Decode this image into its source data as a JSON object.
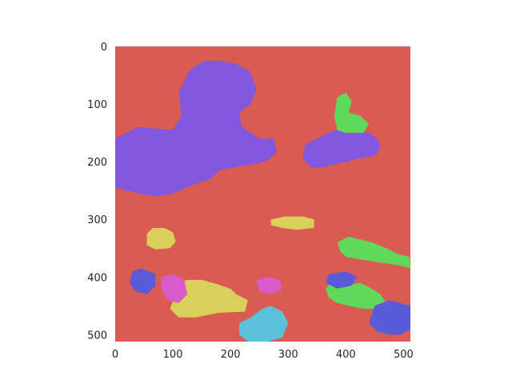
{
  "chart_data": {
    "type": "heatmap",
    "title": "",
    "xlabel": "",
    "ylabel": "",
    "image_size": [
      512,
      512
    ],
    "xlim": [
      0,
      512
    ],
    "ylim": [
      512,
      0
    ],
    "y_axis_inverted": true,
    "xticks": [
      0,
      100,
      200,
      300,
      400,
      500
    ],
    "yticks": [
      0,
      100,
      200,
      300,
      400,
      500
    ],
    "xtick_labels": [
      "0",
      "100",
      "200",
      "300",
      "400",
      "500"
    ],
    "ytick_labels": [
      "0",
      "100",
      "200",
      "300",
      "400",
      "500"
    ],
    "grid": false,
    "legend": "none",
    "background_class_color": "#d95b52",
    "class_colors": [
      "#d95b52",
      "#8259de",
      "#60d95b",
      "#d9cf5b",
      "#5b5bd9",
      "#d95bcb",
      "#5bc0d9"
    ],
    "regions": [
      {
        "name": "purple-main",
        "color": "#8259de",
        "points": [
          [
            0,
            160
          ],
          [
            40,
            140
          ],
          [
            100,
            145
          ],
          [
            115,
            120
          ],
          [
            110,
            80
          ],
          [
            130,
            40
          ],
          [
            155,
            25
          ],
          [
            180,
            25
          ],
          [
            210,
            30
          ],
          [
            235,
            45
          ],
          [
            245,
            75
          ],
          [
            235,
            100
          ],
          [
            215,
            115
          ],
          [
            220,
            140
          ],
          [
            250,
            160
          ],
          [
            275,
            160
          ],
          [
            280,
            185
          ],
          [
            260,
            200
          ],
          [
            235,
            205
          ],
          [
            205,
            210
          ],
          [
            180,
            215
          ],
          [
            165,
            230
          ],
          [
            135,
            240
          ],
          [
            100,
            255
          ],
          [
            70,
            260
          ],
          [
            40,
            255
          ],
          [
            20,
            250
          ],
          [
            0,
            245
          ]
        ]
      },
      {
        "name": "purple-right",
        "color": "#8259de",
        "points": [
          [
            330,
            170
          ],
          [
            370,
            150
          ],
          [
            400,
            140
          ],
          [
            420,
            145
          ],
          [
            440,
            150
          ],
          [
            455,
            160
          ],
          [
            460,
            175
          ],
          [
            450,
            190
          ],
          [
            420,
            195
          ],
          [
            400,
            200
          ],
          [
            380,
            205
          ],
          [
            360,
            210
          ],
          [
            340,
            210
          ],
          [
            325,
            195
          ]
        ]
      },
      {
        "name": "green-right-top",
        "color": "#60d95b",
        "points": [
          [
            385,
            88
          ],
          [
            400,
            80
          ],
          [
            410,
            95
          ],
          [
            405,
            115
          ],
          [
            425,
            120
          ],
          [
            440,
            135
          ],
          [
            430,
            150
          ],
          [
            400,
            150
          ],
          [
            385,
            145
          ],
          [
            380,
            120
          ]
        ]
      },
      {
        "name": "green-right-lower",
        "color": "#60d95b",
        "points": [
          [
            385,
            340
          ],
          [
            405,
            330
          ],
          [
            425,
            335
          ],
          [
            445,
            340
          ],
          [
            470,
            350
          ],
          [
            490,
            360
          ],
          [
            510,
            365
          ],
          [
            512,
            385
          ],
          [
            495,
            380
          ],
          [
            460,
            375
          ],
          [
            430,
            370
          ],
          [
            400,
            365
          ],
          [
            390,
            355
          ]
        ]
      },
      {
        "name": "green-bottom-right",
        "color": "#60d95b",
        "points": [
          [
            365,
            420
          ],
          [
            380,
            405
          ],
          [
            400,
            415
          ],
          [
            425,
            410
          ],
          [
            445,
            420
          ],
          [
            460,
            430
          ],
          [
            470,
            445
          ],
          [
            455,
            455
          ],
          [
            430,
            455
          ],
          [
            405,
            450
          ],
          [
            385,
            445
          ],
          [
            370,
            435
          ]
        ]
      },
      {
        "name": "yellow-left",
        "color": "#d9cf5b",
        "points": [
          [
            55,
            325
          ],
          [
            65,
            315
          ],
          [
            85,
            315
          ],
          [
            100,
            322
          ],
          [
            105,
            338
          ],
          [
            95,
            350
          ],
          [
            70,
            352
          ],
          [
            55,
            345
          ]
        ]
      },
      {
        "name": "yellow-bottom",
        "color": "#d9cf5b",
        "points": [
          [
            110,
            410
          ],
          [
            125,
            405
          ],
          [
            150,
            405
          ],
          [
            175,
            412
          ],
          [
            200,
            420
          ],
          [
            210,
            430
          ],
          [
            230,
            440
          ],
          [
            225,
            460
          ],
          [
            180,
            462
          ],
          [
            140,
            470
          ],
          [
            110,
            470
          ],
          [
            95,
            455
          ],
          [
            105,
            430
          ]
        ]
      },
      {
        "name": "yellow-mid",
        "color": "#d9cf5b",
        "points": [
          [
            270,
            300
          ],
          [
            295,
            295
          ],
          [
            325,
            295
          ],
          [
            345,
            300
          ],
          [
            345,
            315
          ],
          [
            315,
            318
          ],
          [
            290,
            315
          ],
          [
            270,
            310
          ]
        ]
      },
      {
        "name": "blue-bottom-left",
        "color": "#5b5bd9",
        "points": [
          [
            30,
            390
          ],
          [
            45,
            385
          ],
          [
            70,
            395
          ],
          [
            70,
            415
          ],
          [
            55,
            430
          ],
          [
            35,
            425
          ],
          [
            25,
            410
          ]
        ]
      },
      {
        "name": "blue-bottom-right",
        "color": "#5b5bd9",
        "points": [
          [
            450,
            450
          ],
          [
            475,
            440
          ],
          [
            495,
            445
          ],
          [
            512,
            450
          ],
          [
            512,
            490
          ],
          [
            495,
            500
          ],
          [
            475,
            500
          ],
          [
            455,
            495
          ],
          [
            440,
            480
          ]
        ]
      },
      {
        "name": "blue-right-mid",
        "color": "#5b5bd9",
        "points": [
          [
            370,
            395
          ],
          [
            400,
            390
          ],
          [
            420,
            400
          ],
          [
            410,
            415
          ],
          [
            385,
            420
          ],
          [
            365,
            410
          ]
        ]
      },
      {
        "name": "magenta-bottom",
        "color": "#d95bcb",
        "points": [
          [
            80,
            400
          ],
          [
            100,
            395
          ],
          [
            120,
            405
          ],
          [
            125,
            430
          ],
          [
            110,
            445
          ],
          [
            90,
            440
          ],
          [
            80,
            420
          ]
        ]
      },
      {
        "name": "magenta-mid",
        "color": "#d95bcb",
        "points": [
          [
            245,
            405
          ],
          [
            265,
            400
          ],
          [
            285,
            405
          ],
          [
            290,
            420
          ],
          [
            270,
            430
          ],
          [
            250,
            425
          ]
        ]
      },
      {
        "name": "cyan-bottom",
        "color": "#5bc0d9",
        "points": [
          [
            215,
            480
          ],
          [
            235,
            470
          ],
          [
            255,
            455
          ],
          [
            270,
            450
          ],
          [
            290,
            460
          ],
          [
            300,
            480
          ],
          [
            290,
            505
          ],
          [
            265,
            512
          ],
          [
            230,
            512
          ],
          [
            215,
            500
          ]
        ]
      }
    ]
  }
}
